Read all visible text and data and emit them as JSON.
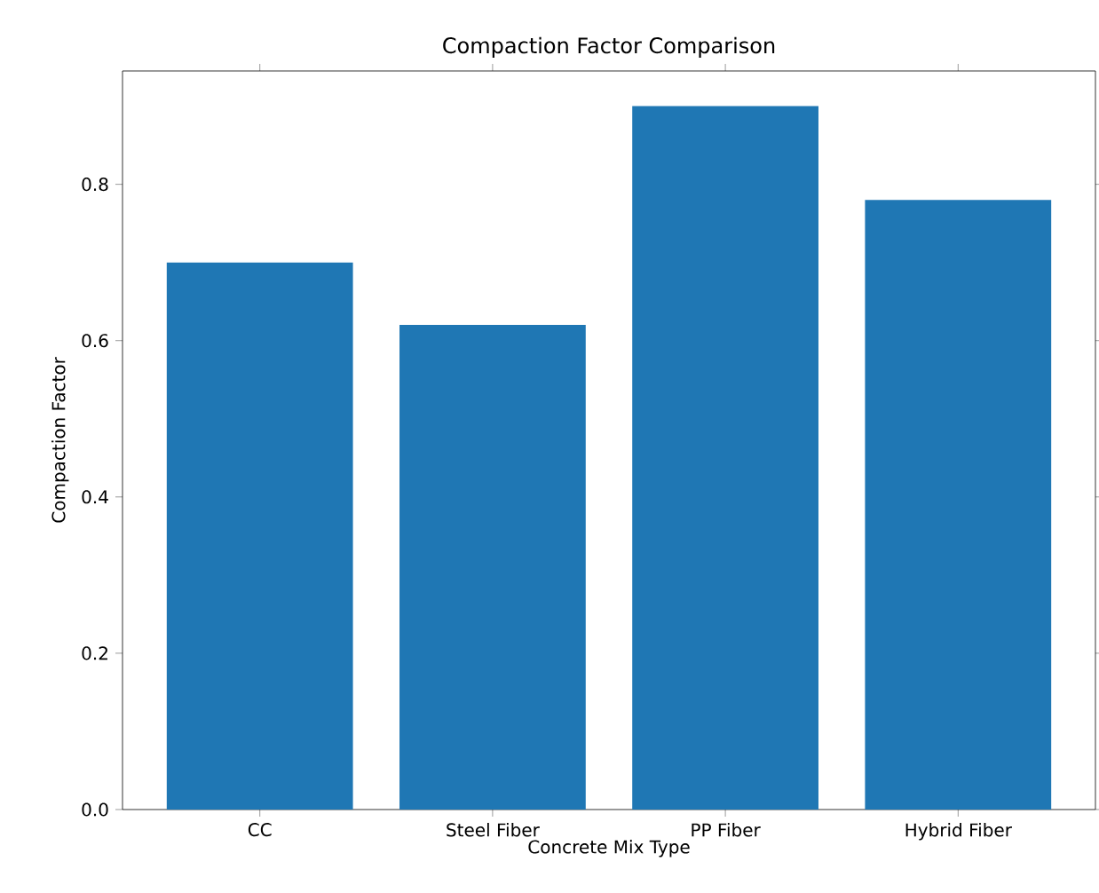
{
  "chart_data": {
    "type": "bar",
    "title": "Compaction Factor Comparison",
    "xlabel": "Concrete Mix Type",
    "ylabel": "Compaction Factor",
    "categories": [
      "CC",
      "Steel Fiber",
      "PP Fiber",
      "Hybrid Fiber"
    ],
    "values": [
      0.7,
      0.62,
      0.9,
      0.78
    ],
    "color": "#1f77b4",
    "ylim": [
      0,
      0.945
    ],
    "yticks": [
      {
        "value": 0,
        "label": "0.0"
      },
      0.2,
      0.4,
      0.6,
      0.8
    ]
  }
}
